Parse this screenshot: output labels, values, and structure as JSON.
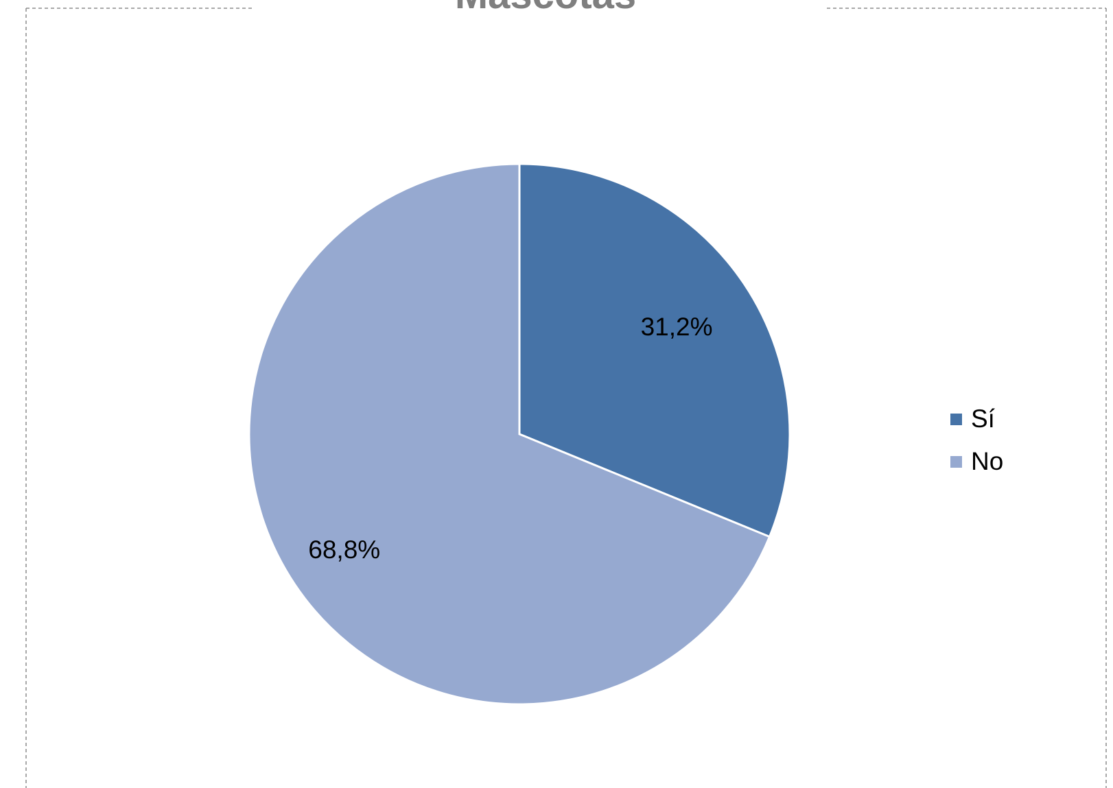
{
  "chart_data": {
    "type": "pie",
    "title": "Mascotas",
    "categories": [
      "Sí",
      "No"
    ],
    "values": [
      31.2,
      68.8
    ],
    "labels": [
      "31,2%",
      "68,8%"
    ],
    "colors": [
      "#4673a7",
      "#96a9d0"
    ],
    "legend_position": "right",
    "start_angle_deg": 0,
    "direction": "clockwise"
  }
}
